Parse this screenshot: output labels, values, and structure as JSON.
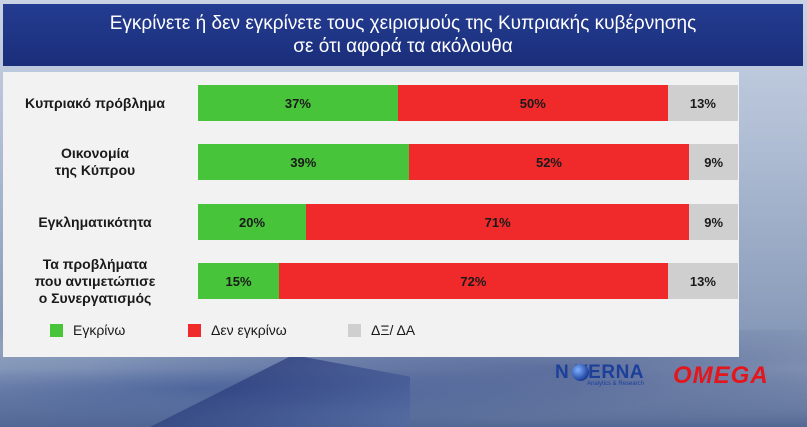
{
  "header": {
    "line1": "Εγκρίνετε ή δεν εγκρίνετε τους χειρισμούς της Κυπριακής κυβέρνησης",
    "line2": "σε ότι αφορά τα ακόλουθα"
  },
  "colors": {
    "approve": "#47c43a",
    "disapprove": "#f02a2a",
    "dk": "#cfcfcf"
  },
  "chart_data": {
    "type": "bar",
    "orientation": "horizontal-stacked",
    "categories": [
      [
        "Κυπριακό πρόβλημα"
      ],
      [
        "Οικονομία",
        "της Κύπρου"
      ],
      [
        "Εγκληματικότητα"
      ],
      [
        "Τα προβλήματα",
        "που αντιμετώπισε",
        "ο Συνεργατισμός"
      ]
    ],
    "series": [
      {
        "name": "Εγκρίνω",
        "values": [
          37,
          39,
          20,
          15
        ],
        "labels": [
          "37%",
          "39%",
          "20%",
          "15%"
        ]
      },
      {
        "name": "Δεν εγκρίνω",
        "values": [
          50,
          52,
          71,
          72
        ],
        "labels": [
          "50%",
          "52%",
          "71%",
          "72%"
        ]
      },
      {
        "name": "ΔΞ/ ΔΑ",
        "values": [
          13,
          9,
          9,
          13
        ],
        "labels": [
          "13%",
          "9%",
          "9%",
          "13%"
        ]
      }
    ],
    "xlim": [
      0,
      100
    ],
    "legend_position": "bottom-left"
  },
  "logos": {
    "noverna": "N   VERNA",
    "noverna_tagline": "Analytics & Research",
    "omega": "OMEGA"
  }
}
